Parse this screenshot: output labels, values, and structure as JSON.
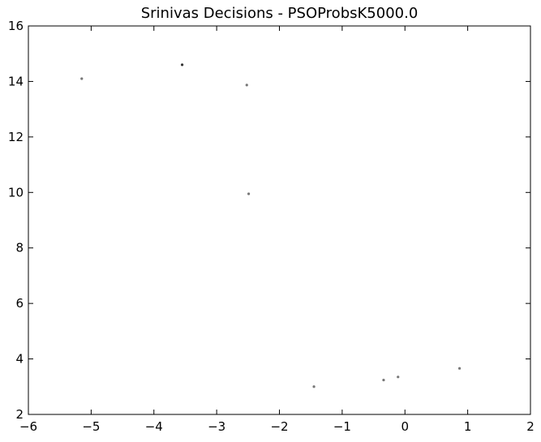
{
  "chart_data": {
    "type": "scatter",
    "title": "Srinivas Decisions - PSOProbsK5000.0",
    "xlabel": "",
    "ylabel": "",
    "xlim": [
      -6,
      2
    ],
    "ylim": [
      2,
      16
    ],
    "grid": false,
    "x_ticks": [
      "−6",
      "−5",
      "−4",
      "−3",
      "−2",
      "−1",
      "0",
      "1",
      "2"
    ],
    "x_tick_values": [
      -6,
      -5,
      -4,
      -3,
      -2,
      -1,
      0,
      1,
      2
    ],
    "y_ticks": [
      "2",
      "4",
      "6",
      "8",
      "10",
      "12",
      "14",
      "16"
    ],
    "y_tick_values": [
      2,
      4,
      6,
      8,
      10,
      12,
      14,
      16
    ],
    "points": [
      {
        "x": -5.15,
        "y": 14.1,
        "color": "#777777"
      },
      {
        "x": -3.55,
        "y": 14.6,
        "color": "#333333"
      },
      {
        "x": -2.52,
        "y": 13.87,
        "color": "#777777"
      },
      {
        "x": -2.49,
        "y": 9.95,
        "color": "#777777"
      },
      {
        "x": -1.45,
        "y": 3.0,
        "color": "#777777"
      },
      {
        "x": -0.34,
        "y": 3.24,
        "color": "#777777"
      },
      {
        "x": -0.11,
        "y": 3.35,
        "color": "#777777"
      },
      {
        "x": 0.87,
        "y": 3.66,
        "color": "#777777"
      }
    ]
  }
}
